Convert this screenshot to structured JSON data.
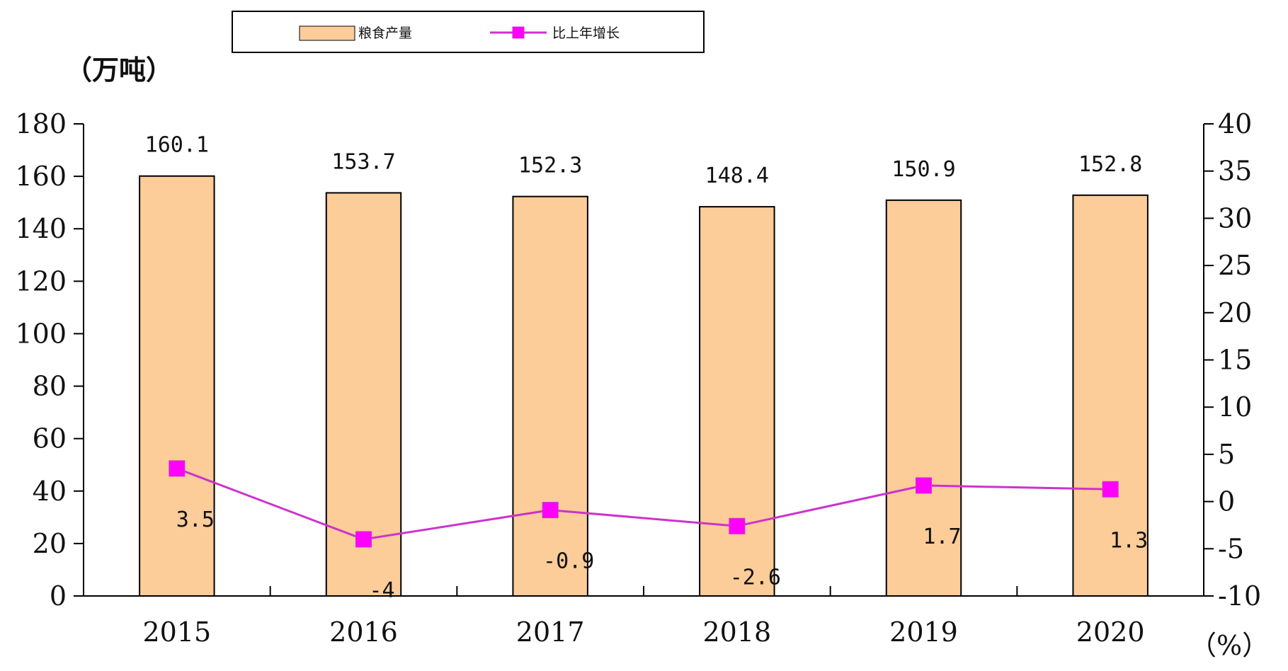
{
  "chart_data": {
    "type": "bar",
    "categories": [
      "2015",
      "2016",
      "2017",
      "2018",
      "2019",
      "2020"
    ],
    "series": [
      {
        "name": "粮食产量",
        "axis": "left",
        "kind": "bar",
        "values": [
          160.1,
          153.7,
          152.3,
          148.4,
          150.9,
          152.8
        ],
        "labels": [
          "160.1",
          "153.7",
          "152.3",
          "148.4",
          "150.9",
          "152.8"
        ]
      },
      {
        "name": "比上年增长",
        "axis": "right",
        "kind": "line",
        "values": [
          3.5,
          -4,
          -0.9,
          -2.6,
          1.7,
          1.3
        ],
        "labels": [
          "3.5",
          "-4",
          "-0.9",
          "-2.6",
          "1.7",
          "1.3"
        ]
      }
    ],
    "left_axis": {
      "unit": "（万吨）",
      "ylim": [
        0,
        180
      ],
      "ticks": [
        "0",
        "20",
        "40",
        "60",
        "80",
        "100",
        "120",
        "140",
        "160",
        "180"
      ]
    },
    "right_axis": {
      "unit": "（%）",
      "ylim": [
        -10,
        40
      ],
      "ticks": [
        "-10",
        "-5",
        "0",
        "5",
        "10",
        "15",
        "20",
        "25",
        "30",
        "35",
        "40"
      ]
    },
    "legend": {
      "position": "top"
    },
    "grid": false
  },
  "colors": {
    "bar_fill": "#fccc99",
    "bar_stroke": "#000000",
    "line": "#cc33cc",
    "marker": "#ff00ff"
  }
}
